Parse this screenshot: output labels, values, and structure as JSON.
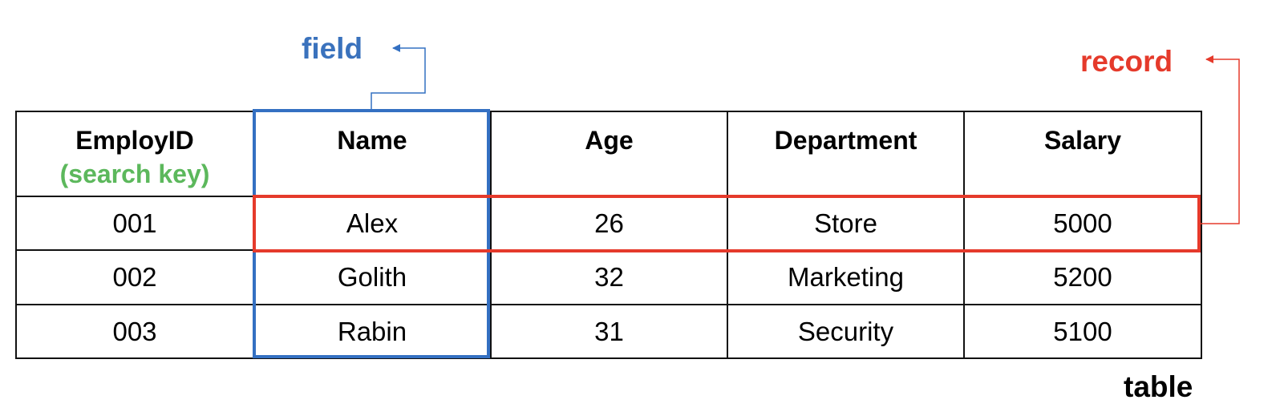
{
  "labels": {
    "field": "field",
    "record": "record",
    "table": "table"
  },
  "table": {
    "headers": [
      {
        "text": "EmployID",
        "subtext": "(search key)"
      },
      {
        "text": "Name",
        "subtext": ""
      },
      {
        "text": "Age",
        "subtext": ""
      },
      {
        "text": "Department",
        "subtext": ""
      },
      {
        "text": "Salary",
        "subtext": ""
      }
    ],
    "rows": [
      [
        "001",
        "Alex",
        "26",
        "Store",
        "5000"
      ],
      [
        "002",
        "Golith",
        "32",
        "Marketing",
        "5200"
      ],
      [
        "003",
        "Rabin",
        "31",
        "Security",
        "5100"
      ]
    ]
  },
  "colors": {
    "field": "#3470c2",
    "record": "#e53a2b",
    "search_key": "#5cb85c"
  }
}
